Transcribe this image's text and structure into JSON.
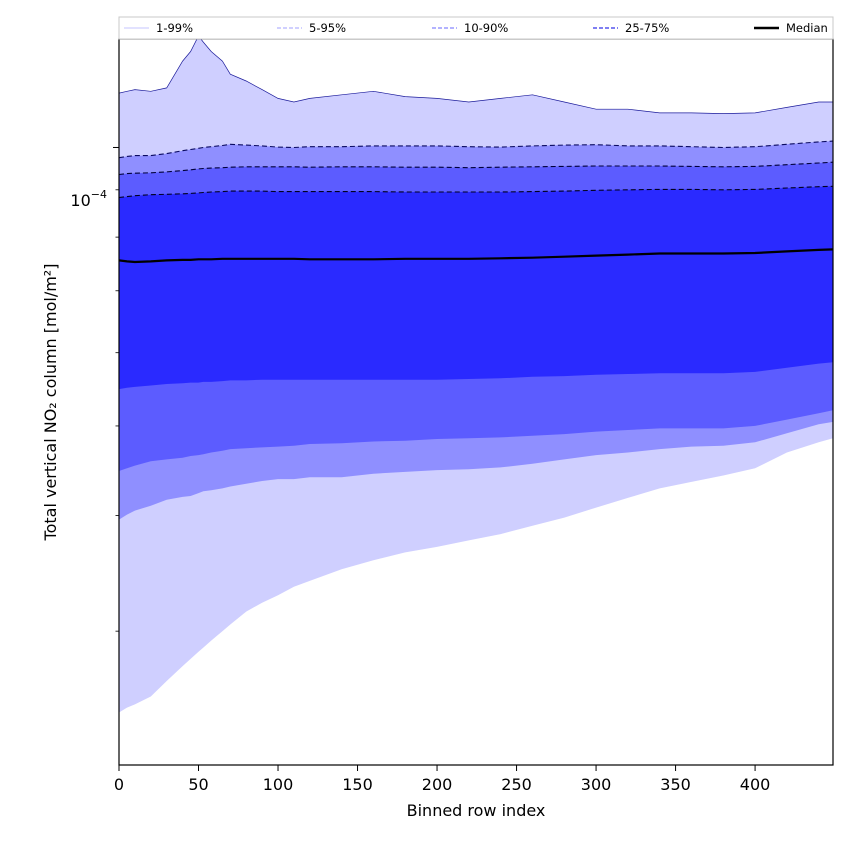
{
  "chart_data": {
    "type": "area",
    "title": "",
    "xlabel": "Binned row index",
    "ylabel": "Total vertical NO₂ column [mol/m²]",
    "xlim": [
      0,
      449
    ],
    "ylim": [
      2.15e-05,
      0.000131
    ],
    "yscale": "log",
    "x_ticks": [
      0,
      50,
      100,
      150,
      200,
      250,
      300,
      350,
      400
    ],
    "x_tick_labels": [
      "0",
      "50",
      "100",
      "150",
      "200",
      "250",
      "300",
      "350",
      "400"
    ],
    "y_tick_label": {
      "base": "10",
      "exponent": "−4"
    },
    "legend_position": "top (horizontal strip)",
    "x": [
      0,
      5,
      10,
      20,
      30,
      40,
      45,
      50,
      53,
      58,
      65,
      70,
      80,
      90,
      100,
      110,
      120,
      140,
      160,
      180,
      200,
      220,
      240,
      260,
      280,
      300,
      320,
      340,
      360,
      380,
      400,
      420,
      440,
      449
    ],
    "bands": [
      {
        "name": "1-99%",
        "color": "#cfcfff",
        "lower": [
          2.45e-05,
          2.48e-05,
          2.5e-05,
          2.55e-05,
          2.65e-05,
          2.75e-05,
          2.8e-05,
          2.85e-05,
          2.88e-05,
          2.93e-05,
          3e-05,
          3.05e-05,
          3.15e-05,
          3.22e-05,
          3.28e-05,
          3.35e-05,
          3.4e-05,
          3.5e-05,
          3.58e-05,
          3.65e-05,
          3.7e-05,
          3.76e-05,
          3.82e-05,
          3.9e-05,
          3.98e-05,
          4.08e-05,
          4.18e-05,
          4.28e-05,
          4.35e-05,
          4.42e-05,
          4.5e-05,
          4.68e-05,
          4.8e-05,
          4.85e-05
        ],
        "upper": [
          0.0001145,
          0.000115,
          0.0001155,
          0.000115,
          0.000116,
          0.000124,
          0.000127,
          0.000132,
          0.00013,
          0.000127,
          0.000124,
          0.00012,
          0.000118,
          0.0001155,
          0.000113,
          0.000112,
          0.000113,
          0.000114,
          0.000115,
          0.0001135,
          0.000113,
          0.000112,
          0.000113,
          0.000114,
          0.000112,
          0.00011,
          0.00011,
          0.000109,
          0.000109,
          0.0001088,
          0.000109,
          0.0001105,
          0.000112,
          0.000112
        ]
      },
      {
        "name": "5-95%",
        "color": "#8f8fff",
        "lower": [
          3.96e-05,
          4.01e-05,
          4.05e-05,
          4.1e-05,
          4.16e-05,
          4.19e-05,
          4.2e-05,
          4.23e-05,
          4.25e-05,
          4.26e-05,
          4.28e-05,
          4.3e-05,
          4.33e-05,
          4.36e-05,
          4.38e-05,
          4.38e-05,
          4.4e-05,
          4.4e-05,
          4.44e-05,
          4.46e-05,
          4.48e-05,
          4.49e-05,
          4.51e-05,
          4.55e-05,
          4.6e-05,
          4.65e-05,
          4.68e-05,
          4.72e-05,
          4.75e-05,
          4.76e-05,
          4.8e-05,
          4.91e-05,
          5.02e-05,
          5.05e-05
        ],
        "upper": [
          9.75e-05,
          9.78e-05,
          9.8e-05,
          9.8e-05,
          9.85e-05,
          9.92e-05,
          9.95e-05,
          9.98e-05,
          0.0001,
          0.0001002,
          0.0001005,
          0.0001008,
          0.0001006,
          0.0001004,
          0.0001001,
          0.0001,
          0.0001002,
          0.0001002,
          0.0001004,
          0.0001004,
          0.0001004,
          0.0001002,
          0.0001001,
          0.0001004,
          0.0001006,
          0.0001007,
          0.0001004,
          0.0001004,
          0.0001002,
          0.0001,
          0.0001002,
          0.0001008,
          0.0001014,
          0.0001016
        ]
      },
      {
        "name": "10-90%",
        "color": "#5c5cff",
        "lower": [
          4.47e-05,
          4.5e-05,
          4.53e-05,
          4.58e-05,
          4.6e-05,
          4.62e-05,
          4.64e-05,
          4.65e-05,
          4.66e-05,
          4.68e-05,
          4.7e-05,
          4.72e-05,
          4.73e-05,
          4.74e-05,
          4.75e-05,
          4.76e-05,
          4.78e-05,
          4.79e-05,
          4.81e-05,
          4.82e-05,
          4.84e-05,
          4.85e-05,
          4.86e-05,
          4.88e-05,
          4.9e-05,
          4.93e-05,
          4.95e-05,
          4.97e-05,
          4.97e-05,
          4.97e-05,
          5e-05,
          5.08e-05,
          5.16e-05,
          5.2e-05
        ],
        "upper": [
          9.35e-05,
          9.37e-05,
          9.38e-05,
          9.39e-05,
          9.41e-05,
          9.44e-05,
          9.46e-05,
          9.48e-05,
          9.49e-05,
          9.5e-05,
          9.51e-05,
          9.52e-05,
          9.53e-05,
          9.53e-05,
          9.53e-05,
          9.53e-05,
          9.52e-05,
          9.53e-05,
          9.53e-05,
          9.52e-05,
          9.52e-05,
          9.51e-05,
          9.52e-05,
          9.53e-05,
          9.54e-05,
          9.55e-05,
          9.55e-05,
          9.55e-05,
          9.54e-05,
          9.53e-05,
          9.54e-05,
          9.58e-05,
          9.62e-05,
          9.64e-05
        ]
      },
      {
        "name": "25-75%",
        "color": "#2a2aff",
        "lower": [
          5.48e-05,
          5.5e-05,
          5.51e-05,
          5.53e-05,
          5.55e-05,
          5.56e-05,
          5.57e-05,
          5.57e-05,
          5.58e-05,
          5.58e-05,
          5.59e-05,
          5.6e-05,
          5.6e-05,
          5.61e-05,
          5.61e-05,
          5.61e-05,
          5.61e-05,
          5.61e-05,
          5.61e-05,
          5.61e-05,
          5.61e-05,
          5.62e-05,
          5.63e-05,
          5.65e-05,
          5.66e-05,
          5.68e-05,
          5.69e-05,
          5.7e-05,
          5.7e-05,
          5.7e-05,
          5.72e-05,
          5.78e-05,
          5.84e-05,
          5.86e-05
        ],
        "upper": [
          8.83e-05,
          8.85e-05,
          8.87e-05,
          8.89e-05,
          8.9e-05,
          8.91e-05,
          8.92e-05,
          8.93e-05,
          8.94e-05,
          8.95e-05,
          8.96e-05,
          8.97e-05,
          8.97e-05,
          8.97e-05,
          8.96e-05,
          8.96e-05,
          8.96e-05,
          8.96e-05,
          8.96e-05,
          8.95e-05,
          8.95e-05,
          8.95e-05,
          8.95e-05,
          8.96e-05,
          8.97e-05,
          8.99e-05,
          9e-05,
          9.01e-05,
          9.01e-05,
          9e-05,
          9.01e-05,
          9.04e-05,
          9.07e-05,
          9.08e-05
        ]
      }
    ],
    "series": [
      {
        "name": "Median",
        "color": "#000000",
        "values": [
          7.55e-05,
          7.53e-05,
          7.52e-05,
          7.53e-05,
          7.55e-05,
          7.56e-05,
          7.56e-05,
          7.57e-05,
          7.57e-05,
          7.57e-05,
          7.58e-05,
          7.58e-05,
          7.58e-05,
          7.58e-05,
          7.58e-05,
          7.58e-05,
          7.57e-05,
          7.57e-05,
          7.57e-05,
          7.58e-05,
          7.58e-05,
          7.58e-05,
          7.59e-05,
          7.6e-05,
          7.62e-05,
          7.64e-05,
          7.66e-05,
          7.68e-05,
          7.68e-05,
          7.68e-05,
          7.69e-05,
          7.72e-05,
          7.75e-05,
          7.76e-05
        ]
      }
    ],
    "legend": [
      {
        "label": "1-99%",
        "style": "solid",
        "color": "#d8d8ff"
      },
      {
        "label": "5-95%",
        "style": "dashed",
        "color": "#c0c0ff"
      },
      {
        "label": "10-90%",
        "style": "dashed",
        "color": "#9a9aff"
      },
      {
        "label": "25-75%",
        "style": "dashed",
        "color": "#5555ee"
      },
      {
        "label": "Median",
        "style": "solid",
        "color": "#000000"
      }
    ]
  }
}
